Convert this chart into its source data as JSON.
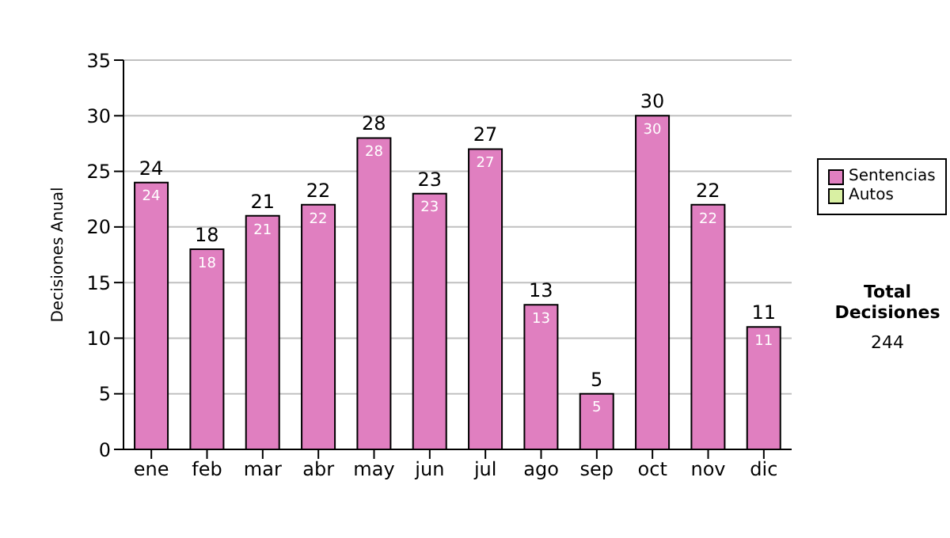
{
  "chart_data": {
    "type": "bar",
    "ylabel": "Decisiones Anual",
    "categories": [
      "ene",
      "feb",
      "mar",
      "abr",
      "may",
      "jun",
      "jul",
      "ago",
      "sep",
      "oct",
      "nov",
      "dic"
    ],
    "series": [
      {
        "name": "Sentencias",
        "color": "#e07fc0",
        "values": [
          24,
          18,
          21,
          22,
          28,
          23,
          27,
          13,
          5,
          30,
          22,
          11
        ]
      },
      {
        "name": "Autos",
        "color": "#d9f0a3",
        "values": [
          null,
          null,
          null,
          null,
          null,
          null,
          null,
          null,
          null,
          null,
          null,
          null
        ]
      }
    ],
    "stacked": true,
    "data_labels": true,
    "totals": [
      "24",
      "18",
      "21",
      "22",
      "28",
      "23",
      "27",
      "13",
      "5",
      "30",
      "22",
      "11"
    ],
    "ylim": [
      0,
      35
    ],
    "yticks": [
      0,
      5,
      10,
      15,
      20,
      25,
      30,
      35
    ],
    "grid": "y",
    "legend": "right",
    "annotations": [
      "Total Decisiones",
      "244"
    ]
  }
}
